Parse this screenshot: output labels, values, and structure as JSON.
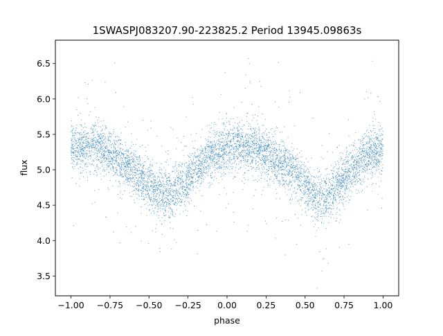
{
  "chart_data": {
    "type": "scatter",
    "title": "1SWASPJ083207.90-223825.2 Period 13945.09863s",
    "xlabel": "phase",
    "ylabel": "flux",
    "xlim": [
      -1.1,
      1.1
    ],
    "ylim": [
      3.22,
      6.83
    ],
    "x_ticks": [
      -1.0,
      -0.75,
      -0.5,
      -0.25,
      0.0,
      0.25,
      0.5,
      0.75,
      1.0
    ],
    "x_tick_labels": [
      "−1.00",
      "−0.75",
      "−0.50",
      "−0.25",
      "0.00",
      "0.25",
      "0.50",
      "0.75",
      "1.00"
    ],
    "y_ticks": [
      3.5,
      4.0,
      4.5,
      5.0,
      5.5,
      6.0,
      6.5
    ],
    "y_tick_labels": [
      "3.5",
      "4.0",
      "4.5",
      "5.0",
      "5.5",
      "6.0",
      "6.5"
    ],
    "grid": false,
    "series": [
      {
        "color": "#1f77b4",
        "marker": "point",
        "phase_range": [
          -1.0,
          1.0
        ],
        "trend": {
          "x": [
            -1.0,
            -0.9,
            -0.8,
            -0.7,
            -0.6,
            -0.5,
            -0.4,
            -0.3,
            -0.2,
            -0.1,
            0.0,
            0.1,
            0.2,
            0.3,
            0.4,
            0.5,
            0.6,
            0.7,
            0.8,
            0.9,
            1.0
          ],
          "y": [
            5.3,
            5.35,
            5.3,
            5.15,
            5.0,
            4.8,
            4.65,
            4.75,
            5.0,
            5.2,
            5.3,
            5.33,
            5.28,
            5.15,
            5.0,
            4.8,
            4.6,
            4.75,
            5.0,
            5.2,
            5.28
          ]
        }
      }
    ]
  }
}
